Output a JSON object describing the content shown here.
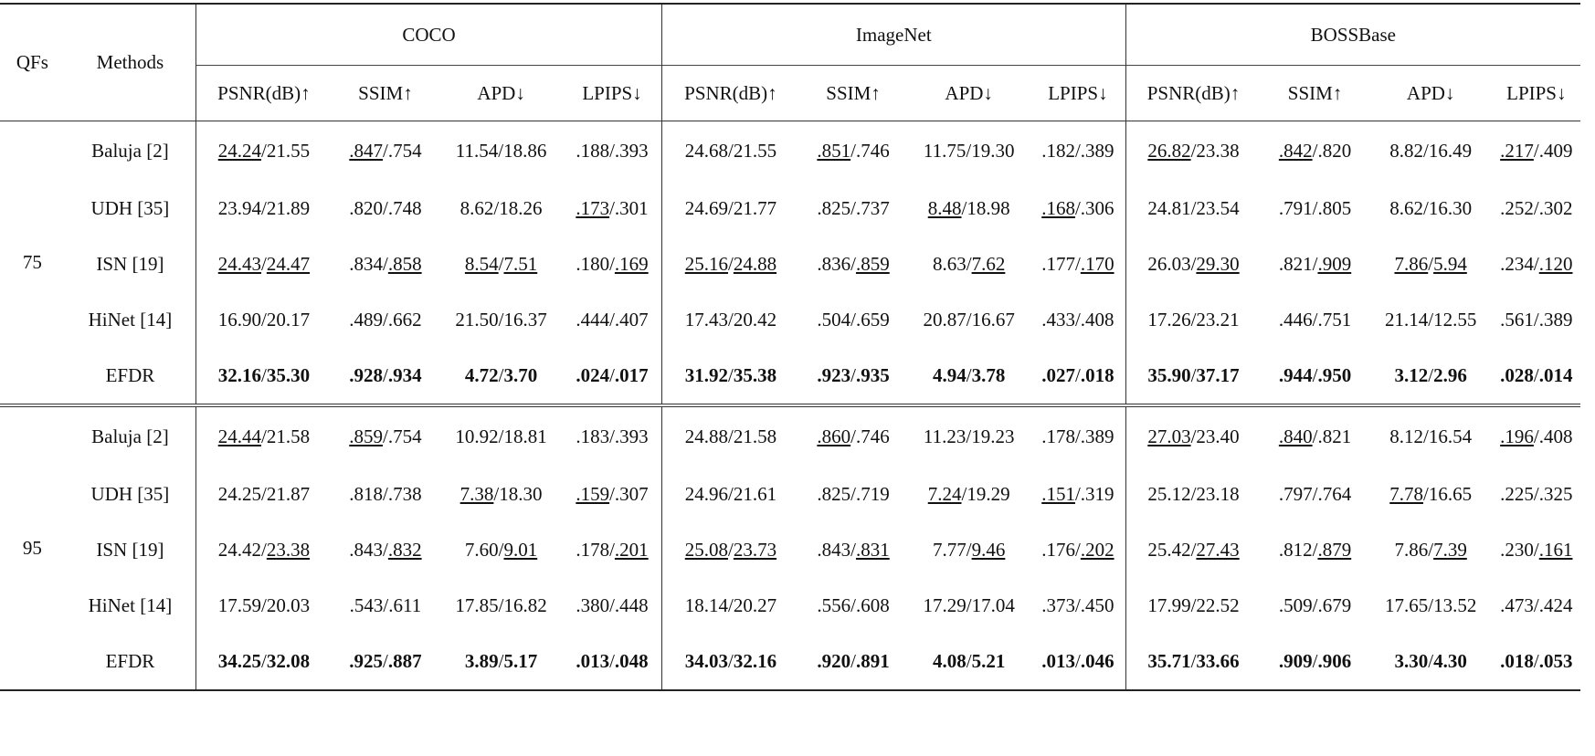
{
  "header": {
    "qfs": "QFs",
    "methods": "Methods",
    "datasets": [
      "COCO",
      "ImageNet",
      "BOSSBase"
    ],
    "metrics": [
      "PSNR(dB)↑",
      "SSIM↑",
      "APD↓",
      "LPIPS↓"
    ]
  },
  "groups": [
    {
      "qf": "75",
      "rows": [
        {
          "method": "Baluja [2]",
          "cells": [
            "<u>24.24</u>/21.55",
            "<u>.847</u>/.754",
            "11.54/18.86",
            ".188/.393",
            "24.68/21.55",
            "<u>.851</u>/.746",
            "11.75/19.30",
            ".182/.389",
            "<u>26.82</u>/23.38",
            "<u>.842</u>/.820",
            "8.82/16.49",
            "<u>.217</u>/.409"
          ]
        },
        {
          "method": "UDH [35]",
          "cells": [
            "23.94/21.89",
            ".820/.748",
            "8.62/18.26",
            "<u>.173</u>/.301",
            "24.69/21.77",
            ".825/.737",
            "<u>8.48</u>/18.98",
            "<u>.168</u>/.306",
            "24.81/23.54",
            ".791/.805",
            "8.62/16.30",
            ".252/.302"
          ]
        },
        {
          "method": "ISN [19]",
          "cells": [
            "<u>24.43</u>/<u>24.47</u>",
            ".834/<u>.858</u>",
            "<u>8.54</u>/<u>7.51</u>",
            ".180/<u>.169</u>",
            "<u>25.16</u>/<u>24.88</u>",
            ".836/<u>.859</u>",
            "8.63/<u>7.62</u>",
            ".177/<u>.170</u>",
            "26.03/<u>29.30</u>",
            ".821/<u>.909</u>",
            "<u>7.86</u>/<u>5.94</u>",
            ".234/<u>.120</u>"
          ]
        },
        {
          "method": "HiNet [14]",
          "cells": [
            "16.90/20.17",
            ".489/.662",
            "21.50/16.37",
            ".444/.407",
            "17.43/20.42",
            ".504/.659",
            "20.87/16.67",
            ".433/.408",
            "17.26/23.21",
            ".446/.751",
            "21.14/12.55",
            ".561/.389"
          ]
        },
        {
          "method": "EFDR",
          "cells": [
            "<b>32.16</b>/<b>35.30</b>",
            "<b>.928</b>/<b>.934</b>",
            "<b>4.72</b>/<b>3.70</b>",
            "<b>.024</b>/<b>.017</b>",
            "<b>31.92</b>/<b>35.38</b>",
            "<b>.923</b>/<b>.935</b>",
            "<b>4.94</b>/<b>3.78</b>",
            "<b>.027</b>/<b>.018</b>",
            "<b>35.90</b>/<b>37.17</b>",
            "<b>.944</b>/<b>.950</b>",
            "<b>3.12</b>/<b>2.96</b>",
            "<b>.028</b>/<b>.014</b>"
          ]
        }
      ]
    },
    {
      "qf": "95",
      "rows": [
        {
          "method": "Baluja [2]",
          "cells": [
            "<u>24.44</u>/21.58",
            "<u>.859</u>/.754",
            "10.92/18.81",
            ".183/.393",
            "24.88/21.58",
            "<u>.860</u>/.746",
            "11.23/19.23",
            ".178/.389",
            "<u>27.03</u>/23.40",
            "<u>.840</u>/.821",
            "8.12/16.54",
            "<u>.196</u>/.408"
          ]
        },
        {
          "method": "UDH [35]",
          "cells": [
            "24.25/21.87",
            ".818/.738",
            "<u>7.38</u>/18.30",
            "<u>.159</u>/.307",
            "24.96/21.61",
            ".825/.719",
            "<u>7.24</u>/19.29",
            "<u>.151</u>/.319",
            "25.12/23.18",
            ".797/.764",
            "<u>7.78</u>/16.65",
            ".225/.325"
          ]
        },
        {
          "method": "ISN [19]",
          "cells": [
            "24.42/<u>23.38</u>",
            ".843/<u>.832</u>",
            "7.60/<u>9.01</u>",
            ".178/<u>.201</u>",
            "<u>25.08</u>/<u>23.73</u>",
            ".843/<u>.831</u>",
            "7.77/<u>9.46</u>",
            ".176/<u>.202</u>",
            "25.42/<u>27.43</u>",
            ".812/<u>.879</u>",
            "7.86/<u>7.39</u>",
            ".230/<u>.161</u>"
          ]
        },
        {
          "method": "HiNet [14]",
          "cells": [
            "17.59/20.03",
            ".543/.611",
            "17.85/16.82",
            ".380/.448",
            "18.14/20.27",
            ".556/.608",
            "17.29/17.04",
            ".373/.450",
            "17.99/22.52",
            ".509/.679",
            "17.65/13.52",
            ".473/.424"
          ]
        },
        {
          "method": "EFDR",
          "cells": [
            "<b>34.25</b>/<b>32.08</b>",
            "<b>.925</b>/<b>.887</b>",
            "<b>3.89</b>/<b>5.17</b>",
            "<b>.013</b>/<b>.048</b>",
            "<b>34.03</b>/<b>32.16</b>",
            "<b>.920</b>/<b>.891</b>",
            "<b>4.08</b>/<b>5.21</b>",
            "<b>.013</b>/<b>.046</b>",
            "<b>35.71</b>/<b>33.66</b>",
            "<b>.909</b>/<b>.906</b>",
            "<b>3.30</b>/<b>4.30</b>",
            "<b>.018</b>/<b>.053</b>"
          ]
        }
      ]
    }
  ]
}
